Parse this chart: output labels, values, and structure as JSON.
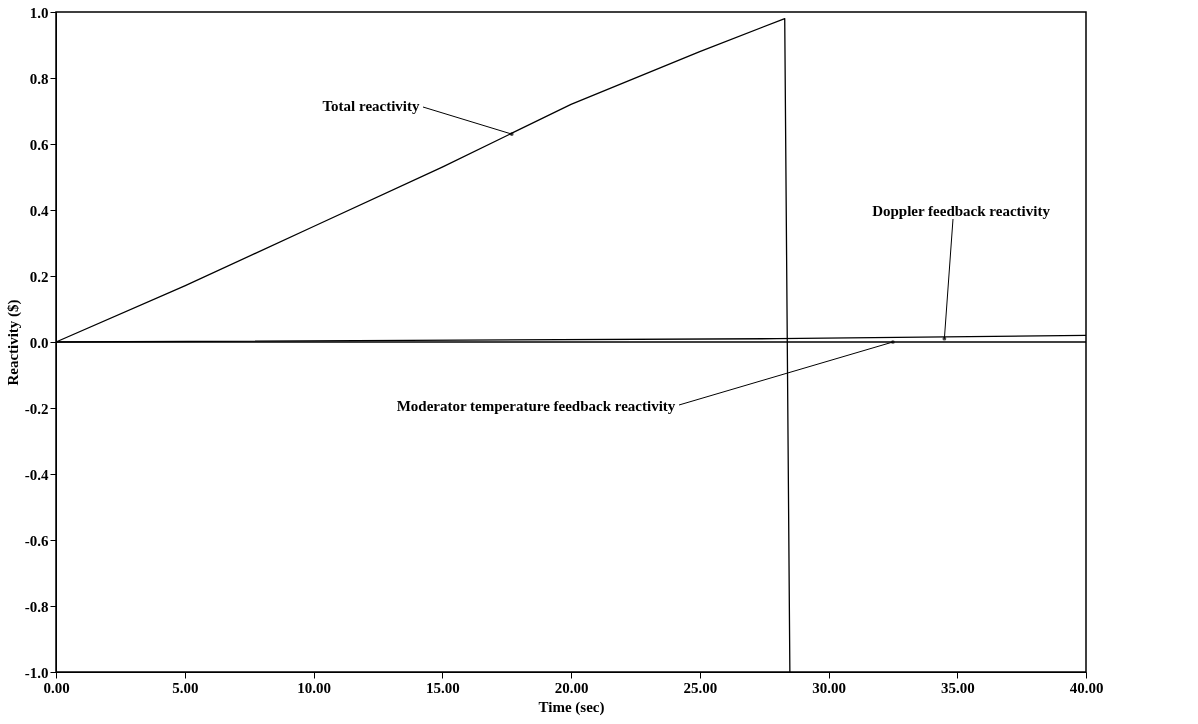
{
  "chart_data": {
    "type": "line",
    "xlabel": "Time (sec)",
    "ylabel": "Reactivity ($)",
    "xlim": [
      0,
      40
    ],
    "ylim": [
      -1.0,
      1.0
    ],
    "xticks": [
      {
        "value": 0,
        "label": "0.00"
      },
      {
        "value": 5,
        "label": "5.00"
      },
      {
        "value": 10,
        "label": "10.00"
      },
      {
        "value": 15,
        "label": "15.00"
      },
      {
        "value": 20,
        "label": "20.00"
      },
      {
        "value": 25,
        "label": "25.00"
      },
      {
        "value": 30,
        "label": "30.00"
      },
      {
        "value": 35,
        "label": "35.00"
      },
      {
        "value": 40,
        "label": "40.00"
      }
    ],
    "yticks": [
      {
        "value": -1.0,
        "label": "-1.0"
      },
      {
        "value": -0.8,
        "label": "-0.8"
      },
      {
        "value": -0.6,
        "label": "-0.6"
      },
      {
        "value": -0.4,
        "label": "-0.4"
      },
      {
        "value": -0.2,
        "label": "-0.2"
      },
      {
        "value": 0,
        "label": "0.0"
      },
      {
        "value": 0.2,
        "label": "0.2"
      },
      {
        "value": 0.4,
        "label": "0.4"
      },
      {
        "value": 0.6,
        "label": "0.6"
      },
      {
        "value": 0.8,
        "label": "0.8"
      },
      {
        "value": 1.0,
        "label": "1.0"
      }
    ],
    "grid": false,
    "legend": false,
    "marker": "none",
    "line_style": "solid",
    "series": [
      {
        "color": "#000000",
        "x": [
          0,
          5,
          10,
          15,
          20,
          25,
          28.3,
          28.5
        ],
        "values": [
          0,
          0.17,
          0.35,
          0.53,
          0.72,
          0.88,
          0.98,
          -1.0
        ]
      },
      {
        "color": "#000000",
        "x": [
          0,
          28,
          40
        ],
        "values": [
          0,
          0.01,
          0.02
        ]
      },
      {
        "color": "#000000",
        "x": [
          0,
          40
        ],
        "values": [
          0,
          0
        ]
      }
    ],
    "annotations": [
      {
        "text": "Total reactivity",
        "x": 17.7,
        "y": 0.63
      },
      {
        "text": "Doppler feedback reactivity",
        "x": 34.5,
        "y": 0.01
      },
      {
        "text": "Moderator temperature feedback reactivity",
        "x": 32.5,
        "y": 0.0
      }
    ]
  }
}
